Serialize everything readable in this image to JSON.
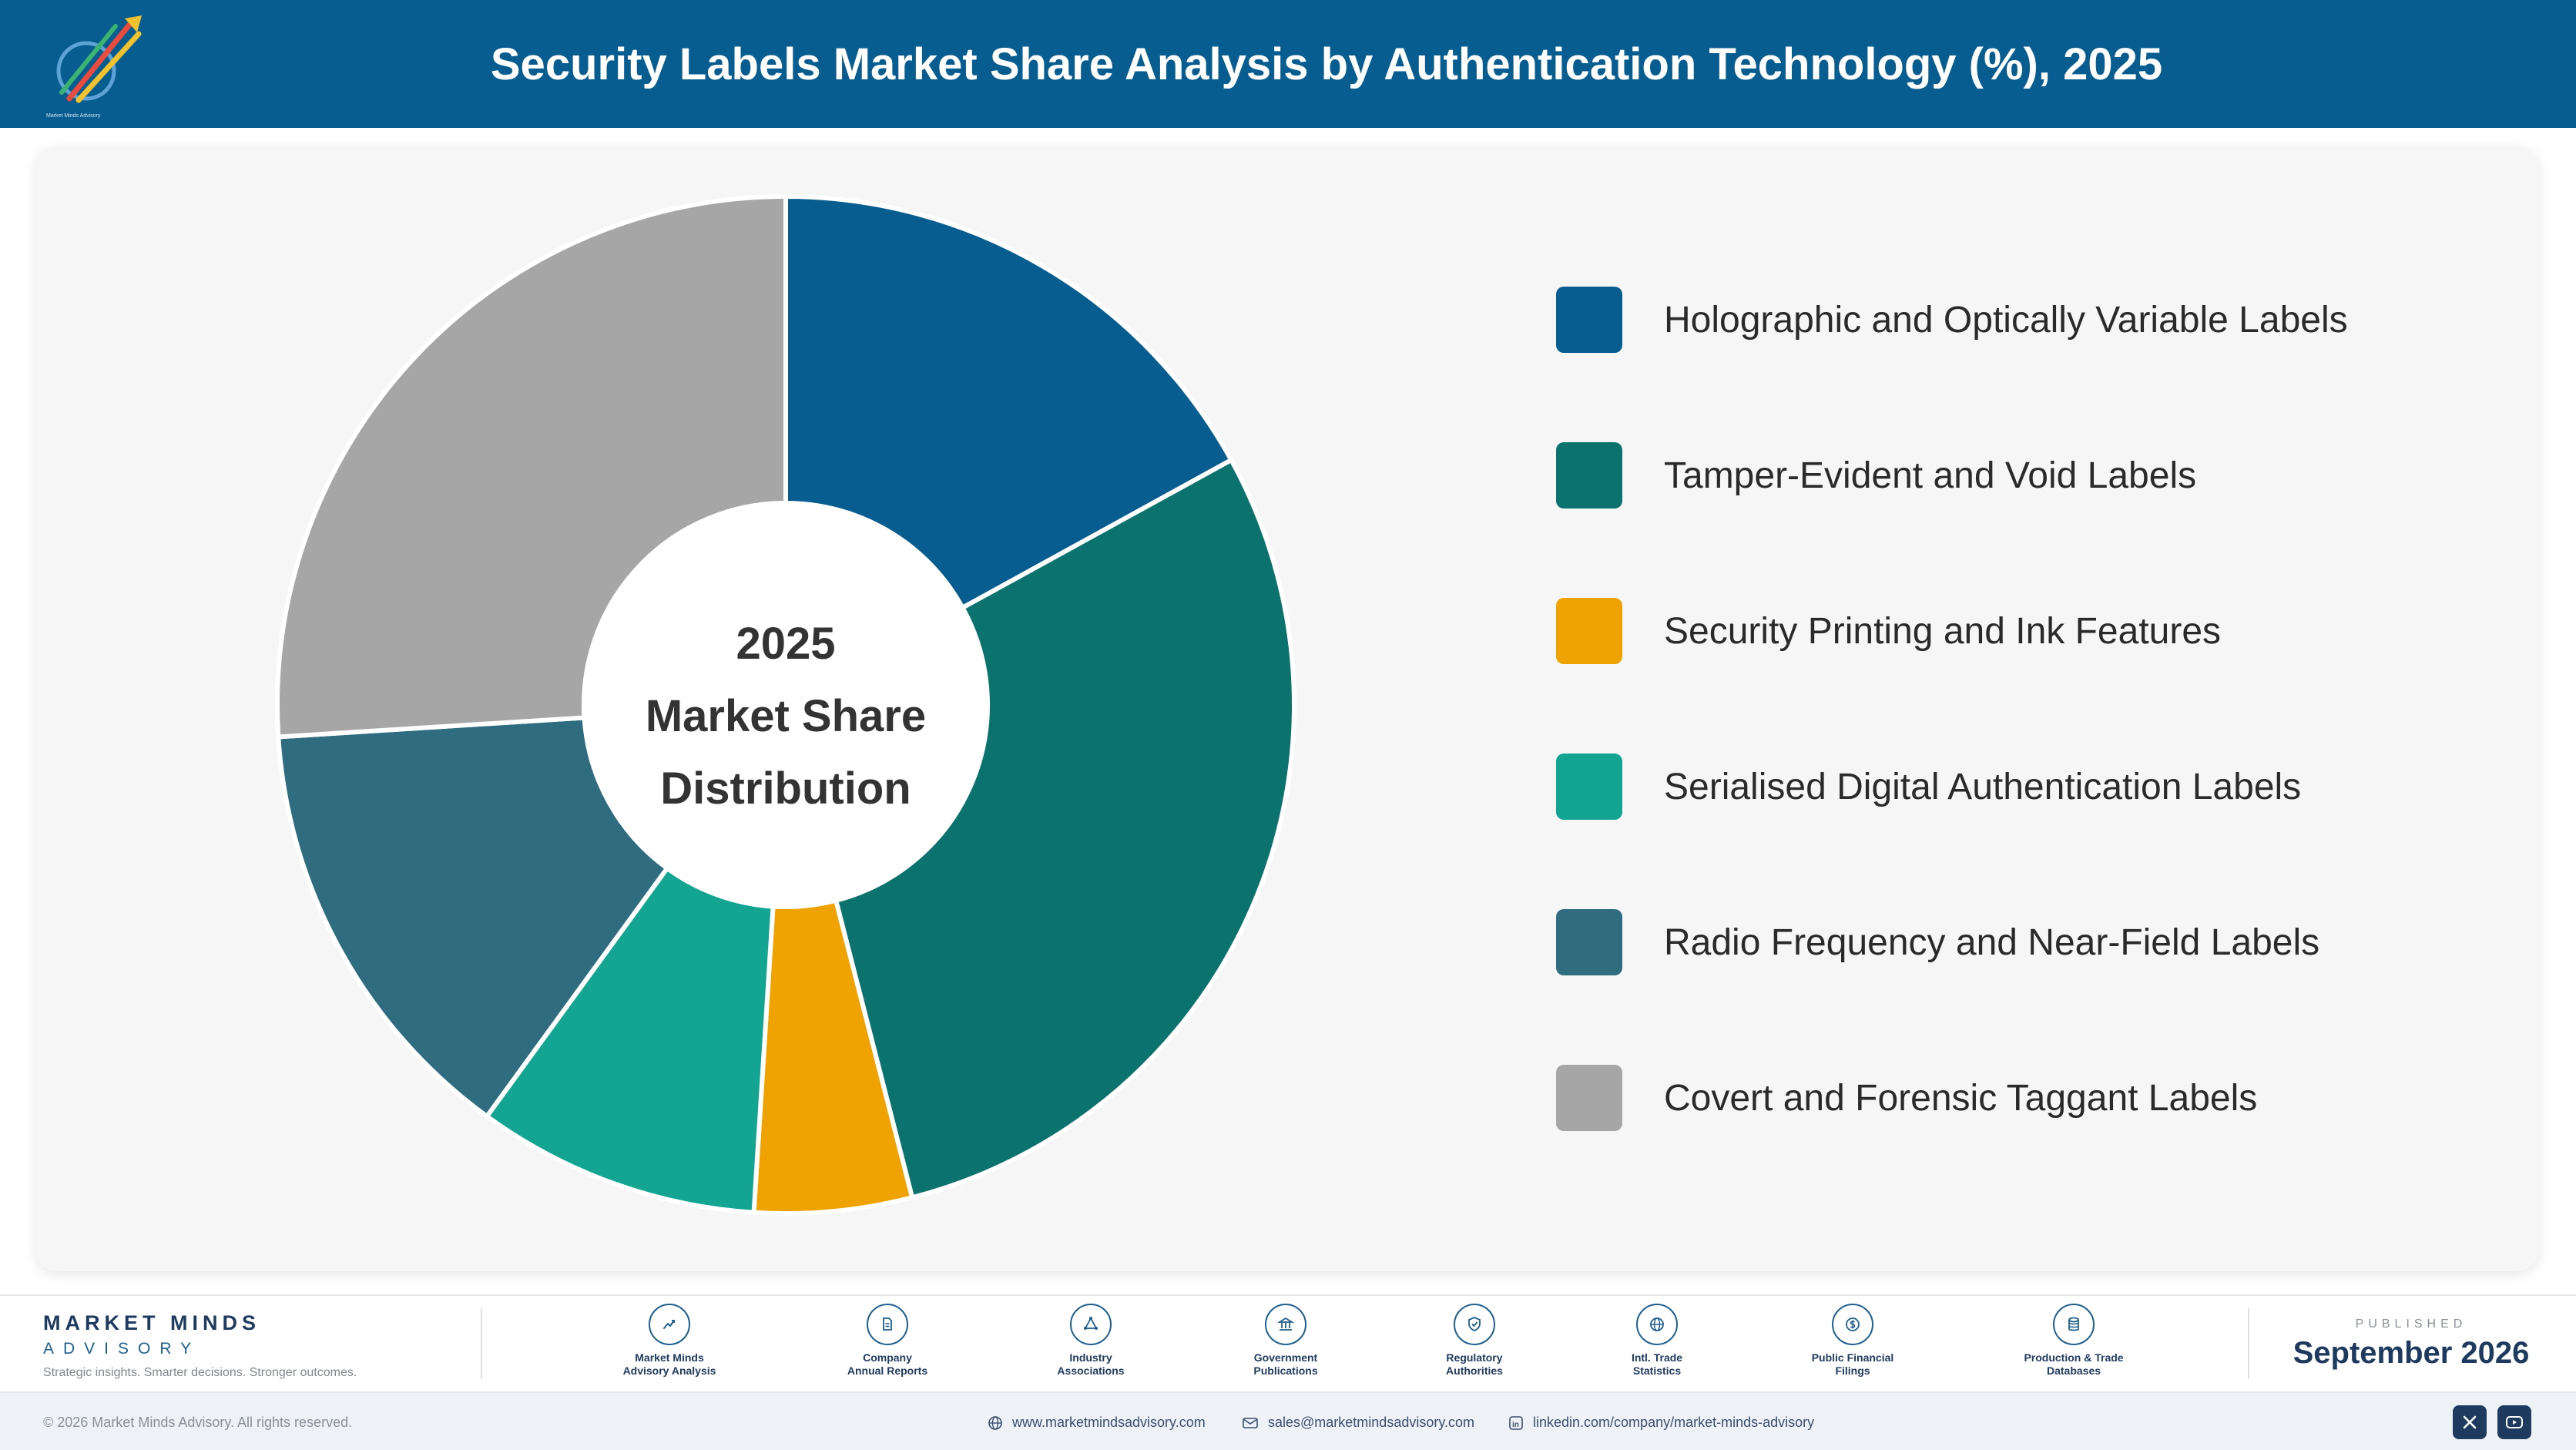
{
  "header": {
    "title": "Security Labels Market Share Analysis by Authentication Technology (%), 2025",
    "logo_text": "Market Minds Advisory"
  },
  "chart_data": {
    "type": "pie",
    "title": "Security Labels Market Share Analysis by Authentication Technology (%), 2025",
    "center_label": [
      "2025",
      "Market Share",
      "Distribution"
    ],
    "legend_position": "right",
    "categories": [
      "Holographic and Optically Variable Labels",
      "Tamper-Evident and Void Labels",
      "Security Printing and Ink Features",
      "Serialised Digital Authentication Labels",
      "Radio Frequency and Near-Field Labels",
      "Covert and Forensic Taggant Labels"
    ],
    "values": [
      17,
      29,
      5,
      9,
      14,
      26
    ],
    "colors": [
      "#075d8f",
      "#0b726d",
      "#eea302",
      "#13a592",
      "#2f6c80",
      "#a6a6a6"
    ]
  },
  "footer": {
    "brand_name": "MARKET MINDS",
    "brand_sub": "ADVISORY",
    "tagline": "Strategic insights. Smarter decisions. Stronger outcomes.",
    "sources": [
      {
        "label": "Market Minds\nAdvisory Analysis",
        "icon": "chart-line-icon"
      },
      {
        "label": "Company\nAnnual Reports",
        "icon": "document-icon"
      },
      {
        "label": "Industry\nAssociations",
        "icon": "network-icon"
      },
      {
        "label": "Government\nPublications",
        "icon": "government-building-icon"
      },
      {
        "label": "Regulatory\nAuthorities",
        "icon": "shield-check-icon"
      },
      {
        "label": "Intl. Trade\nStatistics",
        "icon": "globe-icon"
      },
      {
        "label": "Public Financial\nFilings",
        "icon": "dollar-coin-icon"
      },
      {
        "label": "Production & Trade\nDatabases",
        "icon": "database-icon"
      }
    ],
    "published_label": "PUBLISHED",
    "published_date": "September 2026"
  },
  "bottom_bar": {
    "copyright": "© 2026 Market Minds Advisory. All rights reserved.",
    "website": "www.marketmindsadvisory.com",
    "email": "sales@marketmindsadvisory.com",
    "linkedin": "linkedin.com/company/market-minds-advisory"
  }
}
